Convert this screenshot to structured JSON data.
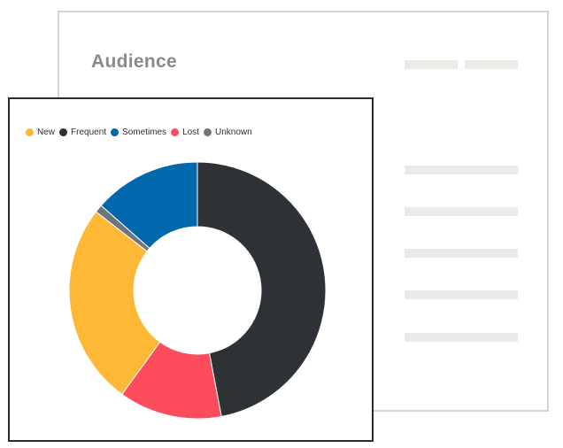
{
  "audience_card": {
    "title": "Audience"
  },
  "chart_data": {
    "type": "pie",
    "categories": [
      "New",
      "Frequent",
      "Sometimes",
      "Lost",
      "Unknown"
    ],
    "values": [
      25.5,
      47.0,
      13.5,
      13.0,
      1.0
    ],
    "colors": [
      "#fdb836",
      "#2e3136",
      "#0068ab",
      "#fd4c5c",
      "#6f767b"
    ],
    "legend": "top-left"
  }
}
